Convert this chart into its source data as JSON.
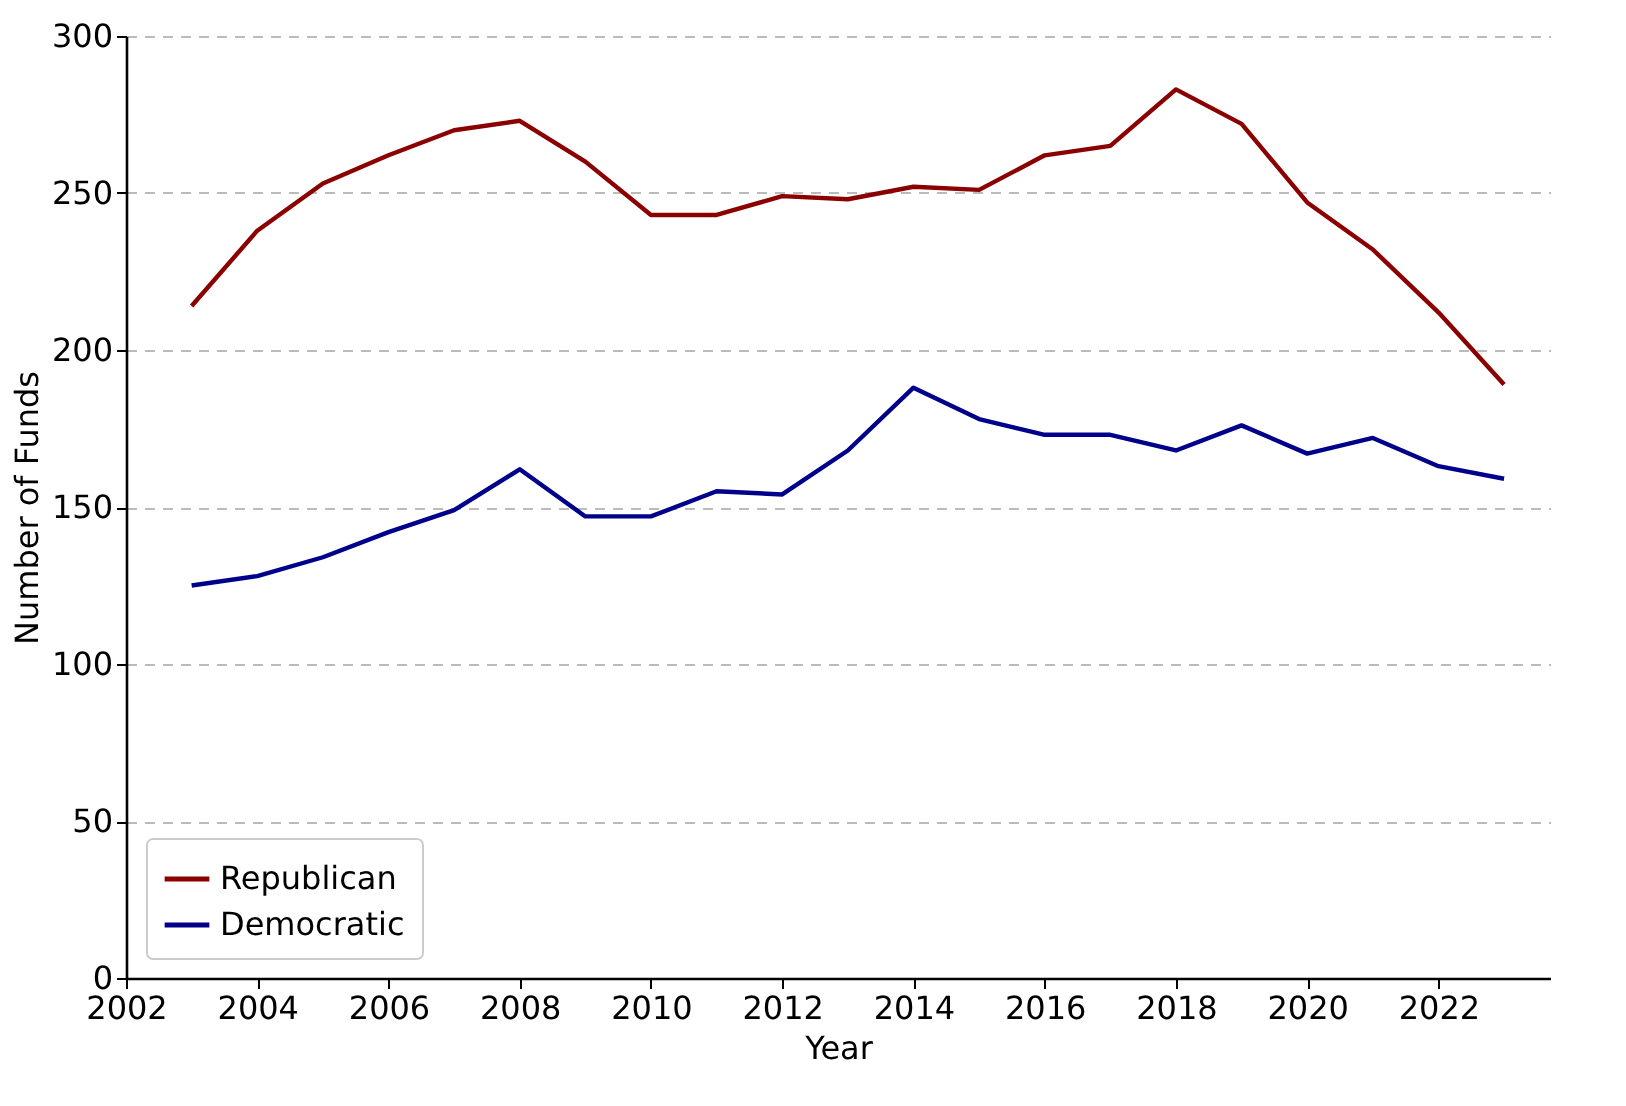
{
  "chart_data": {
    "type": "line",
    "xlabel": "Year",
    "ylabel": "Number of Funds",
    "x": [
      2003,
      2004,
      2005,
      2006,
      2007,
      2008,
      2009,
      2010,
      2011,
      2012,
      2013,
      2014,
      2015,
      2016,
      2017,
      2018,
      2019,
      2020,
      2021,
      2022,
      2023
    ],
    "series": [
      {
        "name": "Republican",
        "color": "#8b0000",
        "values": [
          214,
          238,
          253,
          262,
          270,
          273,
          260,
          243,
          243,
          249,
          248,
          252,
          251,
          262,
          265,
          283,
          272,
          247,
          232,
          212,
          189
        ]
      },
      {
        "name": "Democratic",
        "color": "#00008b",
        "values": [
          125,
          128,
          134,
          142,
          149,
          162,
          147,
          147,
          155,
          154,
          168,
          188,
          178,
          173,
          173,
          168,
          176,
          167,
          172,
          163,
          159
        ]
      }
    ],
    "xlim": [
      2002,
      2023.7
    ],
    "xticks": [
      2002,
      2004,
      2006,
      2008,
      2010,
      2012,
      2014,
      2016,
      2018,
      2020,
      2022
    ],
    "ylim": [
      0,
      300
    ],
    "yticks": [
      0,
      50,
      100,
      150,
      200,
      250,
      300
    ],
    "grid": "y",
    "legend": "bottom left",
    "marker": "none",
    "line_style": "solid"
  }
}
